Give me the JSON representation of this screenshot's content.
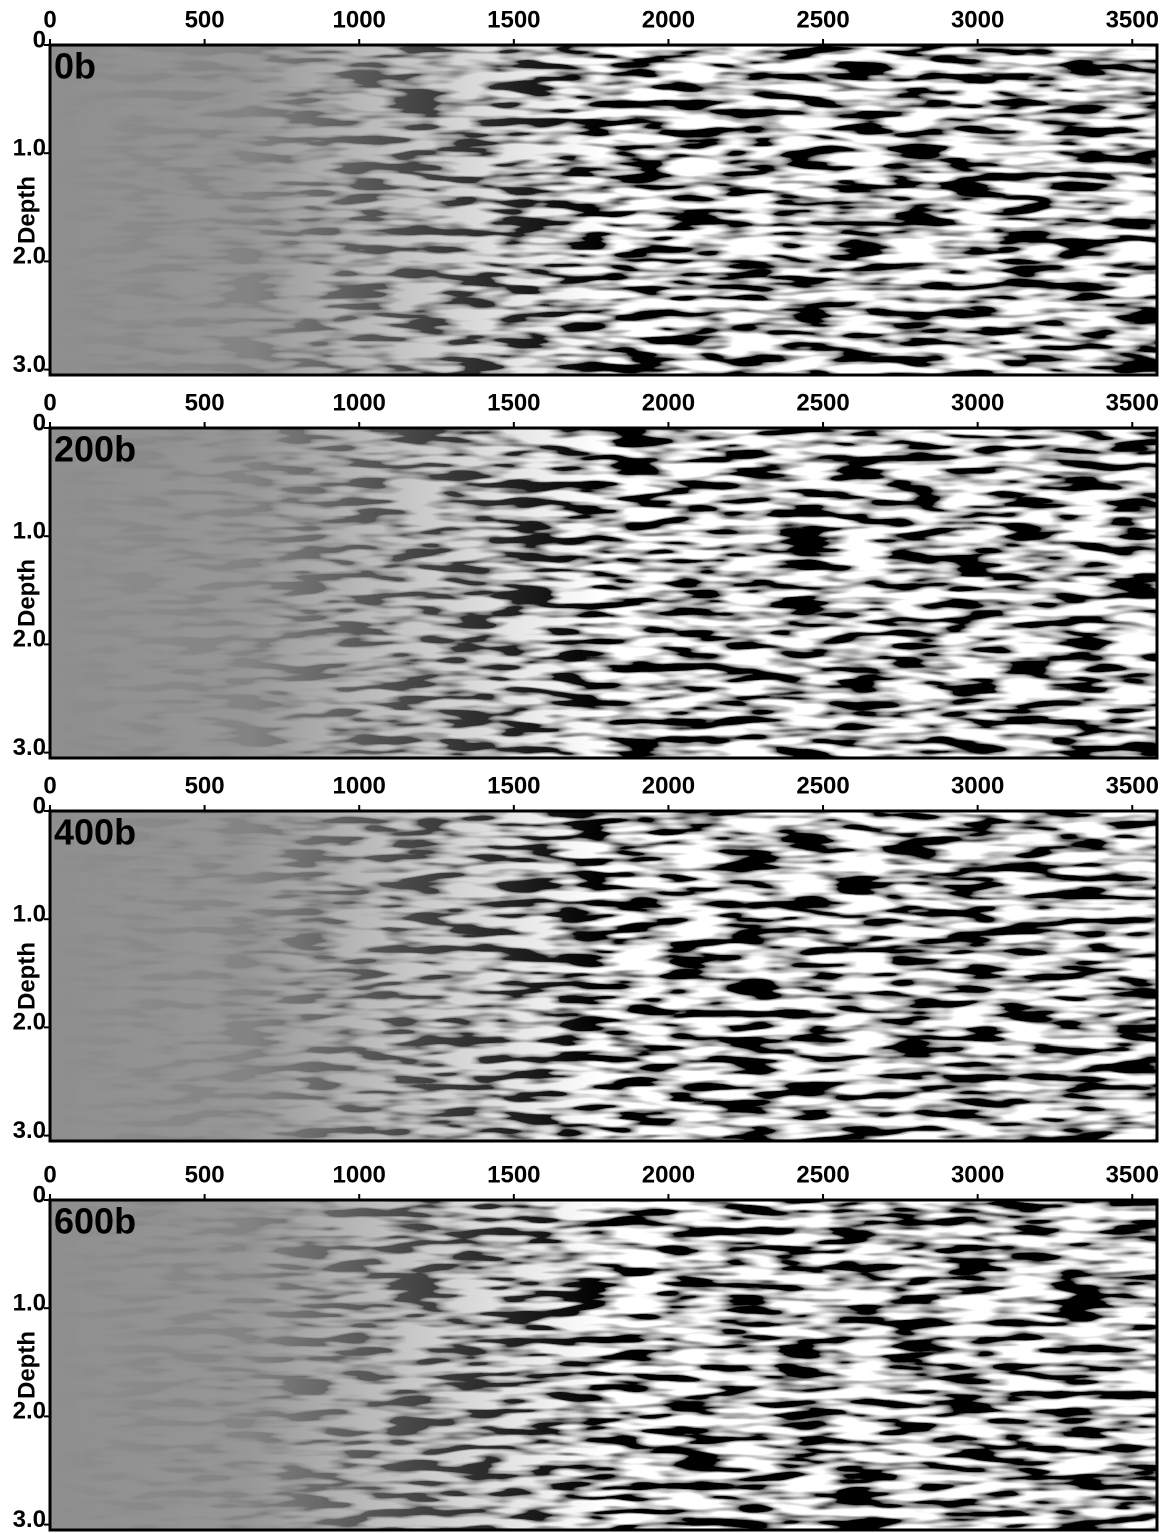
{
  "chart_data": [
    {
      "type": "image",
      "panel_label": "0b",
      "y_label": "Depth",
      "xlim": [
        0,
        3580
      ],
      "xticks": [
        0,
        500,
        1000,
        1500,
        2000,
        2500,
        3000,
        3500
      ],
      "ylim": [
        0,
        3.05
      ],
      "yticks": [
        0,
        {
          "value": 1,
          "label": "1.0"
        },
        {
          "value": 2,
          "label": "2.0"
        },
        {
          "value": 3,
          "label": "3.0"
        }
      ]
    },
    {
      "type": "image",
      "panel_label": "200b",
      "y_label": "Depth",
      "xlim": [
        0,
        3580
      ],
      "xticks": [
        0,
        500,
        1000,
        1500,
        2000,
        2500,
        3000,
        3500
      ],
      "ylim": [
        0,
        3.05
      ],
      "yticks": [
        0,
        {
          "value": 1,
          "label": "1.0"
        },
        {
          "value": 2,
          "label": "2.0"
        },
        {
          "value": 3,
          "label": "3.0"
        }
      ]
    },
    {
      "type": "image",
      "panel_label": "400b",
      "y_label": "Depth",
      "xlim": [
        0,
        3580
      ],
      "xticks": [
        0,
        500,
        1000,
        1500,
        2000,
        2500,
        3000,
        3500
      ],
      "ylim": [
        0,
        3.05
      ],
      "yticks": [
        0,
        {
          "value": 1,
          "label": "1.0"
        },
        {
          "value": 2,
          "label": "2.0"
        },
        {
          "value": 3,
          "label": "3.0"
        }
      ]
    },
    {
      "type": "image",
      "panel_label": "600b",
      "y_label": "Depth",
      "xlim": [
        0,
        3580
      ],
      "xticks": [
        0,
        500,
        1000,
        1500,
        2000,
        2500,
        3000,
        3500
      ],
      "ylim": [
        0,
        3.05
      ],
      "yticks": [
        0,
        {
          "value": 1,
          "label": "1.0"
        },
        {
          "value": 2,
          "label": "2.0"
        },
        {
          "value": 3,
          "label": "3.0"
        }
      ]
    }
  ]
}
